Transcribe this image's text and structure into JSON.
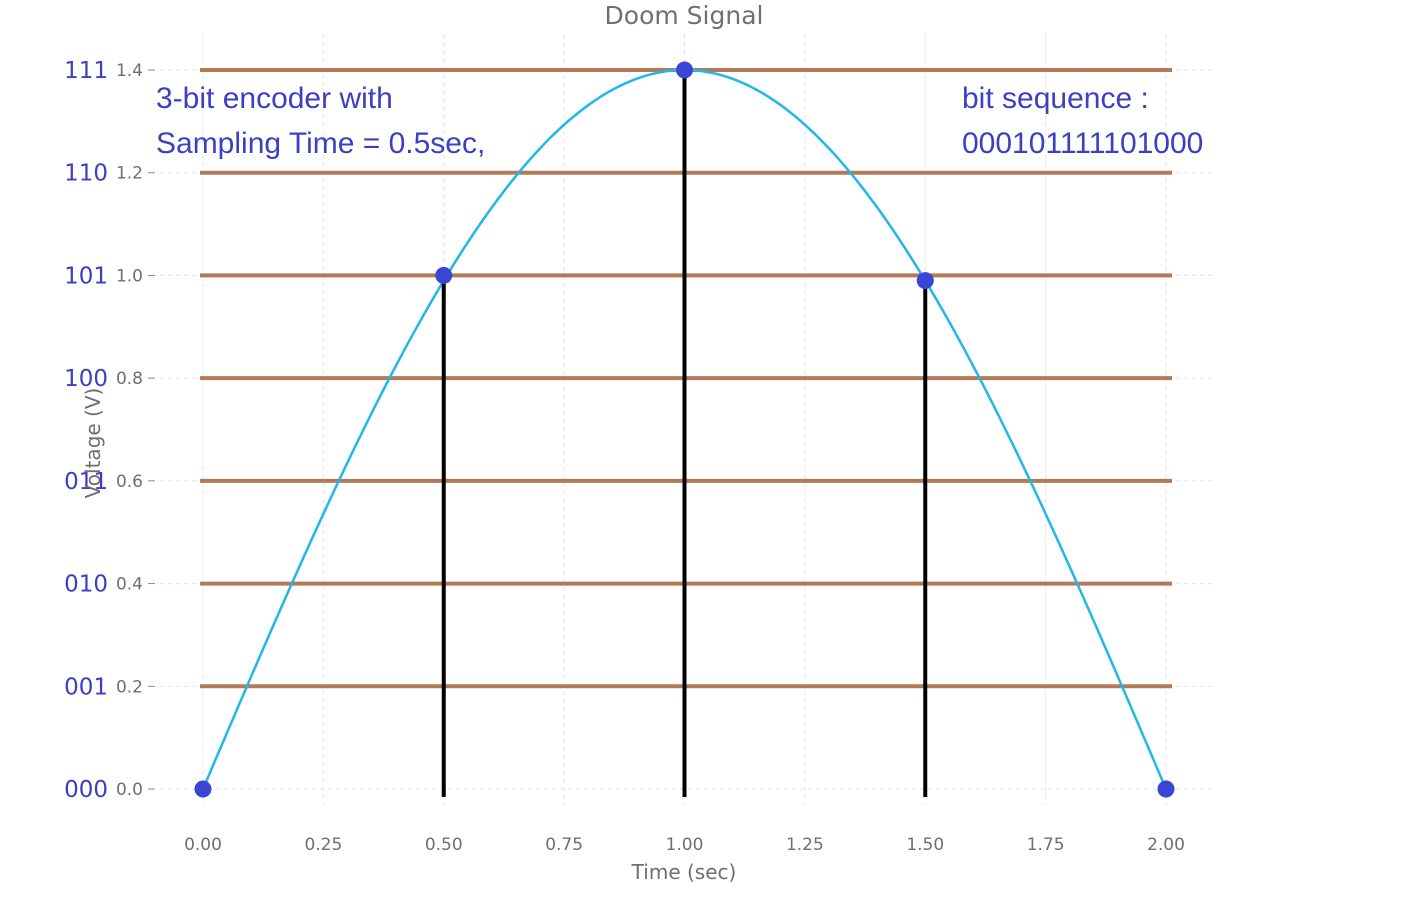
{
  "chart_data": {
    "type": "line",
    "title": "Doom Signal",
    "xlabel": "Time (sec)",
    "ylabel": "Voltage (V)",
    "xlim": [
      0,
      2
    ],
    "ylim": [
      0,
      1.4
    ],
    "grid": true,
    "x_ticks": [
      "0.00",
      "0.25",
      "0.50",
      "0.75",
      "1.00",
      "1.25",
      "1.50",
      "1.75",
      "2.00"
    ],
    "y_ticks": [
      "0.0",
      "0.2",
      "0.4",
      "0.6",
      "0.8",
      "1.0",
      "1.2",
      "1.4"
    ],
    "curve": {
      "x": [
        0,
        0.1,
        0.2,
        0.3,
        0.4,
        0.5,
        0.6,
        0.7,
        0.8,
        0.9,
        1.0,
        1.1,
        1.2,
        1.3,
        1.4,
        1.5,
        1.6,
        1.7,
        1.8,
        1.9,
        2.0
      ],
      "y": [
        0,
        0.22,
        0.43,
        0.64,
        0.82,
        0.99,
        1.13,
        1.25,
        1.33,
        1.38,
        1.4,
        1.38,
        1.33,
        1.25,
        1.13,
        0.99,
        0.82,
        0.64,
        0.43,
        0.22,
        0
      ],
      "color": "#1fb8e8"
    },
    "samples": {
      "x": [
        0,
        0.5,
        1.0,
        1.5,
        2.0
      ],
      "y": [
        0,
        1.0,
        1.4,
        0.99,
        0
      ],
      "color": "#3a45d6"
    },
    "quantization_levels": [
      {
        "value": 0.0,
        "code": "000"
      },
      {
        "value": 0.2,
        "code": "001"
      },
      {
        "value": 0.4,
        "code": "010"
      },
      {
        "value": 0.6,
        "code": "011"
      },
      {
        "value": 0.8,
        "code": "100"
      },
      {
        "value": 1.0,
        "code": "101"
      },
      {
        "value": 1.2,
        "code": "110"
      },
      {
        "value": 1.4,
        "code": "111"
      }
    ],
    "level_line_color": "#b47a57",
    "stem_color": "#000000",
    "annotations": {
      "encoder_line1": "3-bit encoder with",
      "encoder_line2": "Sampling Time = 0.5sec,",
      "bits_line1": "bit sequence :",
      "bits_line2": "000101111101000"
    }
  }
}
